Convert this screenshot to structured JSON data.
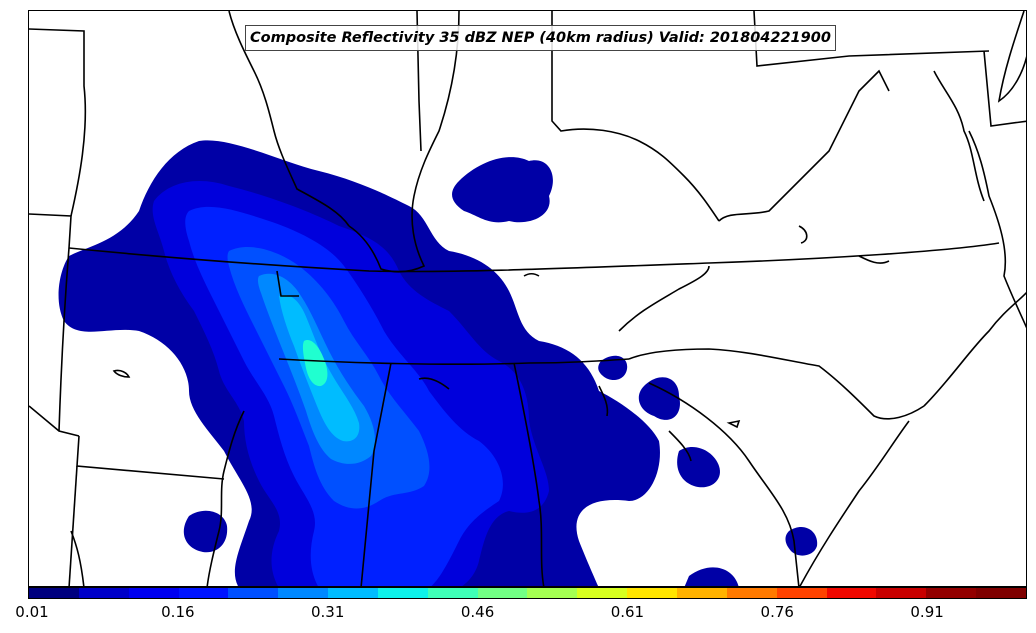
{
  "title": "Composite Reflectivity 35 dBZ NEP (40km radius) Valid: 201804221900",
  "colorbar": {
    "tick_labels": [
      "0.01",
      "0.16",
      "0.31",
      "0.46",
      "0.61",
      "0.76",
      "0.91"
    ],
    "colors": [
      "#00007f",
      "#0000c8",
      "#0000f1",
      "#0014ff",
      "#0050ff",
      "#0088ff",
      "#00bcff",
      "#0df2ea",
      "#3fffb7",
      "#72ff84",
      "#a4ff52",
      "#d7ff1f",
      "#ffe500",
      "#ffb200",
      "#ff7a00",
      "#ff4300",
      "#f10800",
      "#c80000",
      "#930000",
      "#7f0000"
    ]
  },
  "map": {
    "probability_colors": {
      "p01": "#0000a6",
      "p06": "#0000dc",
      "p11": "#0020ff",
      "p16": "#0050ff",
      "p21": "#0088ff",
      "p26": "#00bcff",
      "p31": "#20ffd0"
    },
    "border_color": "#000000"
  }
}
